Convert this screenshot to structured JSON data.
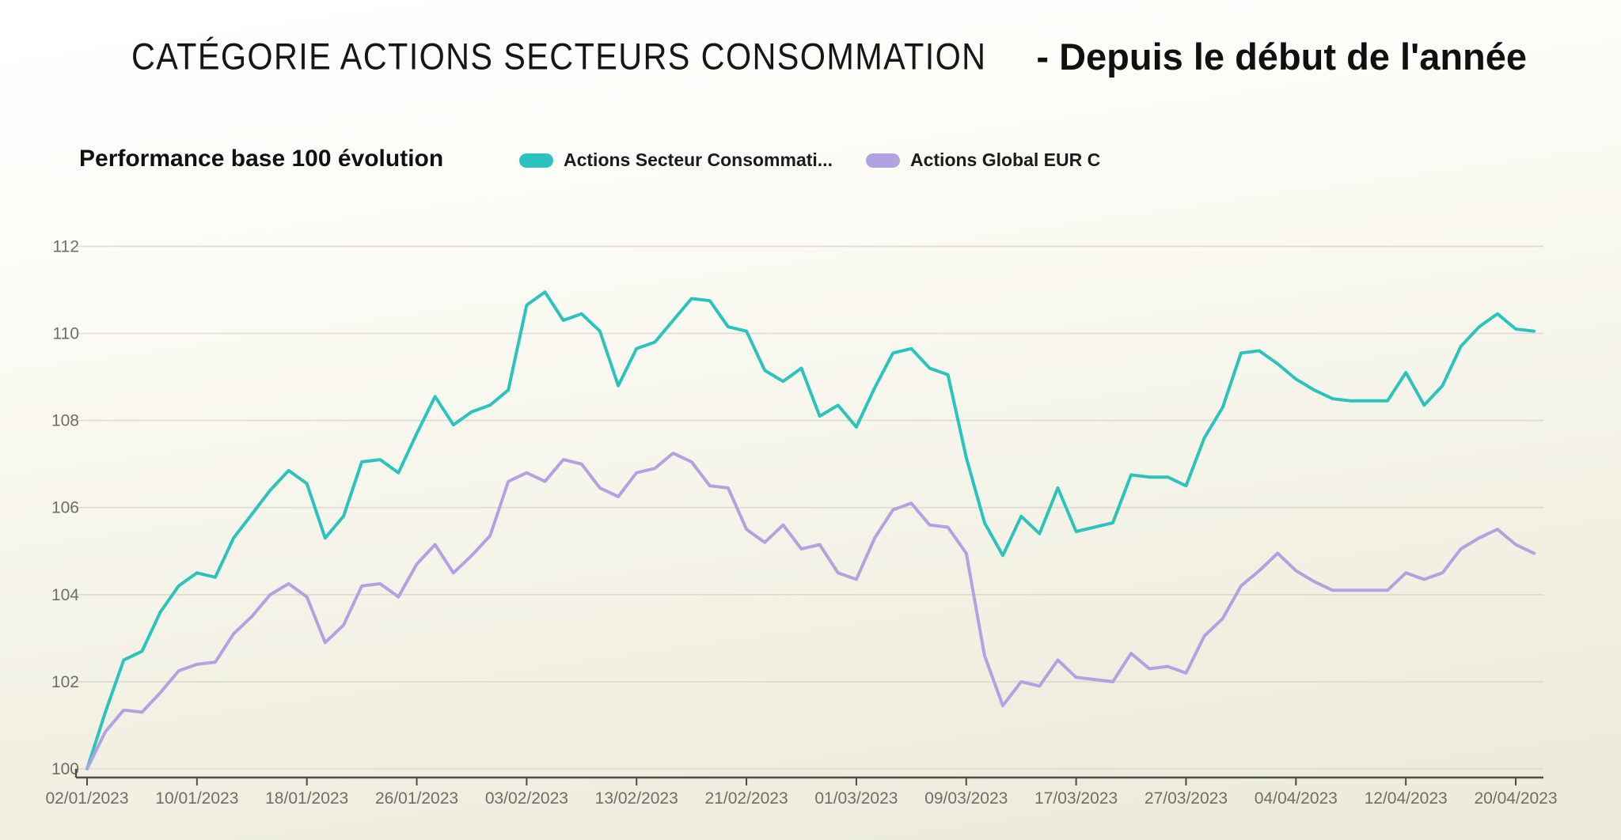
{
  "title": {
    "main": "CATÉGORIE ACTIONS SECTEURS CONSOMMATION",
    "suffix": "- Depuis le début de l'année"
  },
  "legend": {
    "heading": "Performance base 100 évolution",
    "items": [
      {
        "label": "Actions Secteur Consommati...",
        "color": "#2bc3bd"
      },
      {
        "label": "Actions Global EUR C",
        "color": "#b1a3e1"
      }
    ]
  },
  "chart_data": {
    "type": "line",
    "title": "Performance base 100 évolution",
    "xlabel": "",
    "ylabel": "",
    "ylim": [
      100,
      112
    ],
    "y_ticks": [
      100,
      102,
      104,
      106,
      108,
      110,
      112
    ],
    "grid": "horizontal",
    "legend_position": "top",
    "x": [
      "02/01/2023",
      "03/01/2023",
      "04/01/2023",
      "05/01/2023",
      "06/01/2023",
      "09/01/2023",
      "10/01/2023",
      "11/01/2023",
      "12/01/2023",
      "13/01/2023",
      "16/01/2023",
      "17/01/2023",
      "18/01/2023",
      "19/01/2023",
      "20/01/2023",
      "23/01/2023",
      "24/01/2023",
      "25/01/2023",
      "26/01/2023",
      "27/01/2023",
      "30/01/2023",
      "31/01/2023",
      "01/02/2023",
      "02/02/2023",
      "03/02/2023",
      "06/02/2023",
      "07/02/2023",
      "08/02/2023",
      "09/02/2023",
      "10/02/2023",
      "13/02/2023",
      "14/02/2023",
      "15/02/2023",
      "16/02/2023",
      "17/02/2023",
      "20/02/2023",
      "21/02/2023",
      "22/02/2023",
      "23/02/2023",
      "24/02/2023",
      "27/02/2023",
      "28/02/2023",
      "01/03/2023",
      "02/03/2023",
      "03/03/2023",
      "06/03/2023",
      "07/03/2023",
      "08/03/2023",
      "09/03/2023",
      "10/03/2023",
      "13/03/2023",
      "14/03/2023",
      "15/03/2023",
      "16/03/2023",
      "17/03/2023",
      "20/03/2023",
      "21/03/2023",
      "22/03/2023",
      "23/03/2023",
      "24/03/2023",
      "27/03/2023",
      "28/03/2023",
      "29/03/2023",
      "30/03/2023",
      "31/03/2023",
      "03/04/2023",
      "04/04/2023",
      "05/04/2023",
      "06/04/2023",
      "07/04/2023",
      "10/04/2023",
      "11/04/2023",
      "12/04/2023",
      "13/04/2023",
      "14/04/2023",
      "17/04/2023",
      "18/04/2023",
      "19/04/2023",
      "20/04/2023",
      "21/04/2023"
    ],
    "x_tick_indices": [
      0,
      6,
      12,
      18,
      24,
      30,
      36,
      42,
      48,
      54,
      60,
      66,
      72,
      78
    ],
    "x_tick_labels": [
      "02/01/2023",
      "10/01/2023",
      "18/01/2023",
      "26/01/2023",
      "03/02/2023",
      "13/02/2023",
      "21/02/2023",
      "01/03/2023",
      "09/03/2023",
      "17/03/2023",
      "27/03/2023",
      "04/04/2023",
      "12/04/2023",
      "20/04/2023"
    ],
    "series": [
      {
        "name": "Actions Secteur Consommation",
        "legend_label": "Actions Secteur Consommati...",
        "color": "#2bc3bd",
        "values": [
          100,
          101.3,
          102.5,
          102.7,
          103.6,
          104.2,
          104.5,
          104.4,
          105.3,
          105.85,
          106.4,
          106.85,
          106.55,
          105.3,
          105.8,
          107.05,
          107.1,
          106.8,
          107.7,
          108.55,
          107.9,
          108.2,
          108.35,
          108.7,
          110.65,
          110.95,
          110.3,
          110.45,
          110.05,
          108.8,
          109.65,
          109.8,
          110.3,
          110.8,
          110.75,
          110.15,
          110.05,
          109.15,
          108.9,
          109.2,
          108.1,
          108.35,
          107.85,
          108.75,
          109.55,
          109.65,
          109.2,
          109.05,
          107.15,
          105.65,
          104.9,
          105.8,
          105.4,
          106.45,
          105.45,
          105.55,
          105.65,
          106.75,
          106.7,
          106.7,
          106.5,
          107.6,
          108.3,
          109.55,
          109.6,
          109.3,
          108.95,
          108.7,
          108.5,
          108.45,
          108.45,
          108.45,
          109.1,
          108.35,
          108.8,
          109.7,
          110.15,
          110.45,
          110.1,
          110.05
        ]
      },
      {
        "name": "Actions Global EUR C",
        "legend_label": "Actions Global EUR C",
        "color": "#b1a3e1",
        "values": [
          100,
          100.85,
          101.35,
          101.3,
          101.75,
          102.25,
          102.4,
          102.45,
          103.1,
          103.5,
          104.0,
          104.25,
          103.95,
          102.9,
          103.3,
          104.2,
          104.25,
          103.95,
          104.7,
          105.15,
          104.5,
          104.9,
          105.35,
          106.6,
          106.8,
          106.6,
          107.1,
          107.0,
          106.45,
          106.25,
          106.8,
          106.9,
          107.25,
          107.05,
          106.5,
          106.45,
          105.5,
          105.2,
          105.6,
          105.05,
          105.15,
          104.5,
          104.35,
          105.3,
          105.95,
          106.1,
          105.6,
          105.55,
          104.95,
          102.6,
          101.45,
          102.0,
          101.9,
          102.5,
          102.1,
          102.05,
          102.0,
          102.65,
          102.3,
          102.35,
          102.2,
          103.05,
          103.45,
          104.2,
          104.55,
          104.95,
          104.55,
          104.3,
          104.1,
          104.1,
          104.1,
          104.1,
          104.5,
          104.35,
          104.5,
          105.05,
          105.3,
          105.5,
          105.15,
          104.95
        ]
      }
    ]
  },
  "style": {
    "grid_color": "#d9d7ca",
    "axis_color": "#4d4c47",
    "tick_label_color": "#6f6e66"
  }
}
